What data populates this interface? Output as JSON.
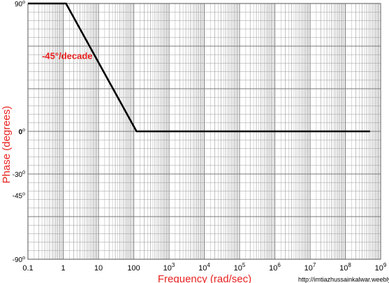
{
  "chart_data": {
    "type": "line",
    "title": "",
    "xlabel": "Frequency (rad/sec)",
    "ylabel": "Phase (degrees)",
    "x_scale": "log",
    "xlim": [
      0.1,
      1000000000
    ],
    "ylim": [
      -90,
      90
    ],
    "grid": true,
    "x_tick_labels": [
      {
        "value": 0.1,
        "label": "0.1"
      },
      {
        "value": 1,
        "label": "1"
      },
      {
        "value": 10,
        "label": "10"
      },
      {
        "value": 100,
        "label": "100"
      },
      {
        "value": 1000,
        "base": "10",
        "exp": "3"
      },
      {
        "value": 10000,
        "base": "10",
        "exp": "4"
      },
      {
        "value": 100000,
        "base": "10",
        "exp": "5"
      },
      {
        "value": 1000000,
        "base": "10",
        "exp": "6"
      },
      {
        "value": 10000000,
        "base": "10",
        "exp": "7"
      },
      {
        "value": 100000000,
        "base": "10",
        "exp": "8"
      },
      {
        "value": 1000000000,
        "base": "10",
        "exp": "9"
      }
    ],
    "y_tick_labels": [
      {
        "value": 90,
        "label": "90",
        "deg": "o"
      },
      {
        "value": 0,
        "label": "0",
        "deg": "o"
      },
      {
        "value": -30,
        "label": "-30",
        "deg": "0"
      },
      {
        "value": -45,
        "label": "-45",
        "deg": "o"
      },
      {
        "value": -90,
        "label": "-90",
        "deg": "o"
      }
    ],
    "series": [
      {
        "x": [
          0.1,
          1.2,
          120,
          500000000
        ],
        "y": [
          90,
          90,
          0,
          0
        ]
      }
    ],
    "annotations": [
      {
        "text": "-45°/decade",
        "x": 0.25,
        "y": 51
      }
    ],
    "colors": {
      "line": "#000000",
      "label": "#e8221f",
      "grid_major": "#7a7a7a",
      "grid_minor": "#9a9a9a"
    }
  },
  "watermark": "http://imtiazhussainkalwar.weebly.com"
}
